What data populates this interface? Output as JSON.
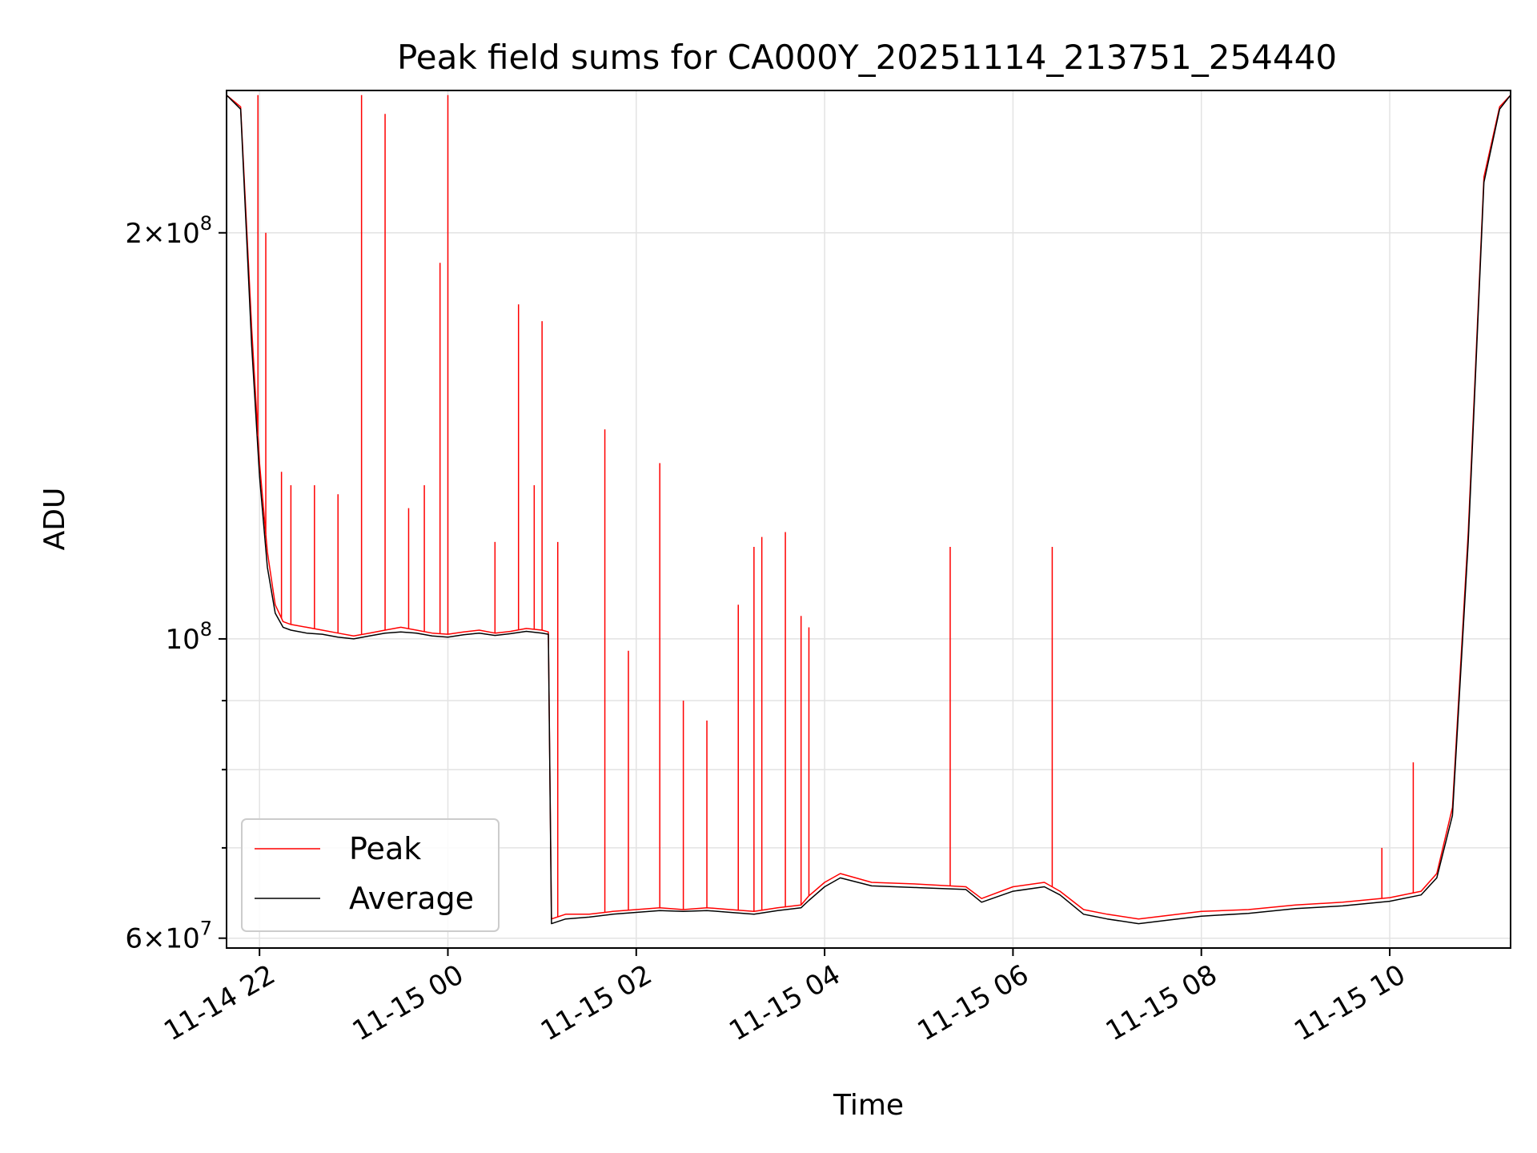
{
  "chart_data": {
    "type": "line",
    "title": "Peak field sums for CA000Y_20251114_213751_254440",
    "xlabel": "Time",
    "ylabel": "ADU",
    "x_axis": {
      "type": "datetime",
      "range": [
        "2025-11-14T21:39",
        "2025-11-15T11:17"
      ],
      "ticks": [
        "2025-11-14T22:00",
        "2025-11-15T00:00",
        "2025-11-15T02:00",
        "2025-11-15T04:00",
        "2025-11-15T06:00",
        "2025-11-15T08:00",
        "2025-11-15T10:00"
      ],
      "tick_labels": [
        "11-14 22",
        "11-15 00",
        "11-15 02",
        "11-15 04",
        "11-15 06",
        "11-15 08",
        "11-15 10"
      ]
    },
    "y_axis": {
      "scale": "log",
      "range": [
        59000000,
        255000000
      ],
      "ticks": [
        60000000,
        100000000,
        200000000
      ],
      "tick_labels": [
        {
          "mantissa": "6",
          "times": "×",
          "base": "10",
          "exp": "7"
        },
        {
          "mantissa": "",
          "times": "",
          "base": "10",
          "exp": "8"
        },
        {
          "mantissa": "2",
          "times": "×",
          "base": "10",
          "exp": "8"
        }
      ],
      "minor_gridlines": [
        70000000,
        80000000,
        90000000
      ]
    },
    "grid": true,
    "legend": {
      "placement": "lower-left",
      "entries": [
        "Peak",
        "Average"
      ]
    },
    "colors": {
      "peak": "#ff0000",
      "average": "#000000"
    },
    "series": [
      {
        "name": "Peak",
        "x": [
          "2025-11-14T21:39",
          "2025-11-14T21:48",
          "2025-11-14T21:55",
          "2025-11-14T22:00",
          "2025-11-14T22:05",
          "2025-11-14T22:10",
          "2025-11-14T22:15",
          "2025-11-14T22:20",
          "2025-11-14T22:30",
          "2025-11-14T22:40",
          "2025-11-14T22:50",
          "2025-11-14T23:00",
          "2025-11-14T23:10",
          "2025-11-14T23:20",
          "2025-11-14T23:30",
          "2025-11-14T23:40",
          "2025-11-14T23:50",
          "2025-11-15T00:00",
          "2025-11-15T00:10",
          "2025-11-15T00:20",
          "2025-11-15T00:30",
          "2025-11-15T00:40",
          "2025-11-15T00:50",
          "2025-11-15T01:00",
          "2025-11-15T01:04",
          "2025-11-15T01:06",
          "2025-11-15T01:15",
          "2025-11-15T01:30",
          "2025-11-15T01:45",
          "2025-11-15T02:00",
          "2025-11-15T02:15",
          "2025-11-15T02:30",
          "2025-11-15T02:45",
          "2025-11-15T03:00",
          "2025-11-15T03:15",
          "2025-11-15T03:30",
          "2025-11-15T03:45",
          "2025-11-15T03:50",
          "2025-11-15T04:00",
          "2025-11-15T04:10",
          "2025-11-15T04:30",
          "2025-11-15T05:00",
          "2025-11-15T05:30",
          "2025-11-15T05:40",
          "2025-11-15T06:00",
          "2025-11-15T06:20",
          "2025-11-15T06:30",
          "2025-11-15T06:45",
          "2025-11-15T07:00",
          "2025-11-15T07:20",
          "2025-11-15T07:40",
          "2025-11-15T08:00",
          "2025-11-15T08:30",
          "2025-11-15T09:00",
          "2025-11-15T09:30",
          "2025-11-15T10:00",
          "2025-11-15T10:20",
          "2025-11-15T10:30",
          "2025-11-15T10:40",
          "2025-11-15T10:50",
          "2025-11-15T11:00",
          "2025-11-15T11:10",
          "2025-11-15T11:17"
        ],
        "y": [
          253000000,
          248000000,
          170000000,
          135000000,
          116000000,
          106000000,
          103000000,
          102500000,
          102000000,
          101500000,
          101000000,
          100500000,
          101000000,
          101500000,
          102000000,
          101500000,
          101000000,
          100800000,
          101200000,
          101500000,
          101000000,
          101300000,
          101800000,
          101500000,
          101200000,
          62000000,
          62500000,
          62500000,
          62800000,
          63000000,
          63200000,
          63000000,
          63200000,
          63000000,
          62800000,
          63200000,
          63500000,
          64500000,
          66000000,
          67000000,
          66000000,
          65800000,
          65500000,
          64200000,
          65500000,
          66000000,
          65000000,
          63000000,
          62500000,
          62000000,
          62400000,
          62800000,
          63000000,
          63500000,
          63800000,
          64300000,
          65000000,
          67000000,
          75000000,
          120000000,
          220000000,
          248000000,
          253000000
        ],
        "spikes": [
          {
            "x": "2025-11-14T21:59",
            "y": 253000000
          },
          {
            "x": "2025-11-14T22:04",
            "y": 200000000
          },
          {
            "x": "2025-11-14T22:14",
            "y": 133000000
          },
          {
            "x": "2025-11-14T22:20",
            "y": 130000000
          },
          {
            "x": "2025-11-14T22:35",
            "y": 130000000
          },
          {
            "x": "2025-11-14T22:50",
            "y": 128000000
          },
          {
            "x": "2025-11-14T23:05",
            "y": 253000000
          },
          {
            "x": "2025-11-14T23:20",
            "y": 245000000
          },
          {
            "x": "2025-11-14T23:35",
            "y": 125000000
          },
          {
            "x": "2025-11-14T23:45",
            "y": 130000000
          },
          {
            "x": "2025-11-14T23:55",
            "y": 190000000
          },
          {
            "x": "2025-11-15T00:00",
            "y": 253000000
          },
          {
            "x": "2025-11-15T00:30",
            "y": 118000000
          },
          {
            "x": "2025-11-15T00:45",
            "y": 177000000
          },
          {
            "x": "2025-11-15T00:55",
            "y": 130000000
          },
          {
            "x": "2025-11-15T01:00",
            "y": 172000000
          },
          {
            "x": "2025-11-15T01:10",
            "y": 118000000
          },
          {
            "x": "2025-11-15T01:40",
            "y": 143000000
          },
          {
            "x": "2025-11-15T01:55",
            "y": 98000000
          },
          {
            "x": "2025-11-15T02:15",
            "y": 135000000
          },
          {
            "x": "2025-11-15T02:30",
            "y": 90000000
          },
          {
            "x": "2025-11-15T02:45",
            "y": 87000000
          },
          {
            "x": "2025-11-15T03:05",
            "y": 106000000
          },
          {
            "x": "2025-11-15T03:15",
            "y": 117000000
          },
          {
            "x": "2025-11-15T03:20",
            "y": 119000000
          },
          {
            "x": "2025-11-15T03:35",
            "y": 120000000
          },
          {
            "x": "2025-11-15T03:45",
            "y": 104000000
          },
          {
            "x": "2025-11-15T03:50",
            "y": 102000000
          },
          {
            "x": "2025-11-15T05:20",
            "y": 117000000
          },
          {
            "x": "2025-11-15T06:25",
            "y": 117000000
          },
          {
            "x": "2025-11-15T09:55",
            "y": 70000000
          },
          {
            "x": "2025-11-15T10:15",
            "y": 81000000
          }
        ]
      },
      {
        "name": "Average",
        "x": [
          "2025-11-14T21:39",
          "2025-11-14T21:48",
          "2025-11-14T21:55",
          "2025-11-14T22:00",
          "2025-11-14T22:05",
          "2025-11-14T22:10",
          "2025-11-14T22:15",
          "2025-11-14T22:20",
          "2025-11-14T22:30",
          "2025-11-14T22:40",
          "2025-11-14T22:50",
          "2025-11-14T23:00",
          "2025-11-14T23:10",
          "2025-11-14T23:20",
          "2025-11-14T23:30",
          "2025-11-14T23:40",
          "2025-11-14T23:50",
          "2025-11-15T00:00",
          "2025-11-15T00:10",
          "2025-11-15T00:20",
          "2025-11-15T00:30",
          "2025-11-15T00:40",
          "2025-11-15T00:50",
          "2025-11-15T01:00",
          "2025-11-15T01:04",
          "2025-11-15T01:06",
          "2025-11-15T01:15",
          "2025-11-15T01:30",
          "2025-11-15T01:45",
          "2025-11-15T02:00",
          "2025-11-15T02:15",
          "2025-11-15T02:30",
          "2025-11-15T02:45",
          "2025-11-15T03:00",
          "2025-11-15T03:15",
          "2025-11-15T03:30",
          "2025-11-15T03:45",
          "2025-11-15T03:50",
          "2025-11-15T04:00",
          "2025-11-15T04:10",
          "2025-11-15T04:30",
          "2025-11-15T05:00",
          "2025-11-15T05:30",
          "2025-11-15T05:40",
          "2025-11-15T06:00",
          "2025-11-15T06:20",
          "2025-11-15T06:30",
          "2025-11-15T06:45",
          "2025-11-15T07:00",
          "2025-11-15T07:20",
          "2025-11-15T07:40",
          "2025-11-15T08:00",
          "2025-11-15T08:30",
          "2025-11-15T09:00",
          "2025-11-15T09:30",
          "2025-11-15T10:00",
          "2025-11-15T10:20",
          "2025-11-15T10:30",
          "2025-11-15T10:40",
          "2025-11-15T10:50",
          "2025-11-15T11:00",
          "2025-11-15T11:10",
          "2025-11-15T11:17"
        ],
        "y": [
          253000000,
          247000000,
          165000000,
          132000000,
          113000000,
          104500000,
          102000000,
          101500000,
          101000000,
          100800000,
          100300000,
          100000000,
          100500000,
          101000000,
          101200000,
          101000000,
          100500000,
          100300000,
          100700000,
          101000000,
          100600000,
          100900000,
          101300000,
          101000000,
          100800000,
          61500000,
          62000000,
          62200000,
          62500000,
          62700000,
          62900000,
          62800000,
          62900000,
          62700000,
          62500000,
          62900000,
          63200000,
          64000000,
          65500000,
          66500000,
          65600000,
          65400000,
          65200000,
          63800000,
          65000000,
          65500000,
          64600000,
          62500000,
          62000000,
          61500000,
          61900000,
          62300000,
          62600000,
          63100000,
          63400000,
          63900000,
          64600000,
          66500000,
          74000000,
          118000000,
          218000000,
          247000000,
          253000000
        ]
      }
    ]
  }
}
